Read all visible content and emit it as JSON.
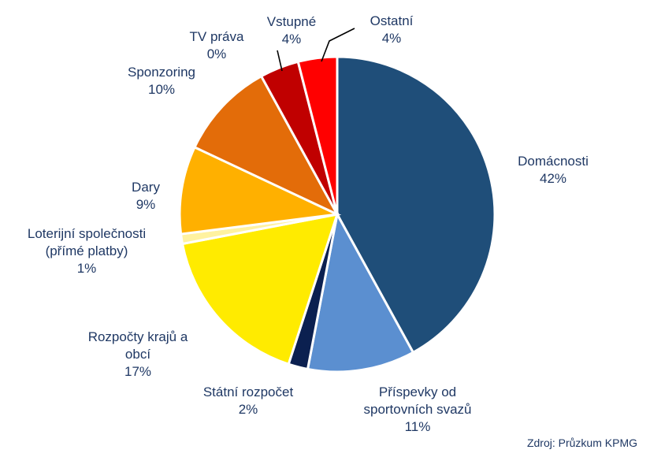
{
  "chart_data": {
    "type": "pie",
    "slices": [
      {
        "label": [
          "Domácnosti"
        ],
        "value_label": "42%",
        "value": 42,
        "color": "#1f4e79"
      },
      {
        "label": [
          "Příspevky od",
          "sportovních svazů"
        ],
        "value_label": "11%",
        "value": 11,
        "color": "#5b8fd0"
      },
      {
        "label": [
          "Státní rozpočet"
        ],
        "value_label": "2%",
        "value": 2,
        "color": "#0b2050"
      },
      {
        "label": [
          "Rozpočty krajů a",
          "obcí"
        ],
        "value_label": "17%",
        "value": 17,
        "color": "#ffeb00"
      },
      {
        "label": [
          "Loterijní společnosti",
          "(přímé platby)"
        ],
        "value_label": "1%",
        "value": 1,
        "color": "#fff2a0"
      },
      {
        "label": [
          "Dary"
        ],
        "value_label": "9%",
        "value": 9,
        "color": "#ffb000"
      },
      {
        "label": [
          "Sponzoring"
        ],
        "value_label": "10%",
        "value": 10,
        "color": "#e36c09"
      },
      {
        "label": [
          "TV práva"
        ],
        "value_label": "0%",
        "value": 0,
        "color": "#c00000"
      },
      {
        "label": [
          "Vstupné"
        ],
        "value_label": "4%",
        "value": 4,
        "color": "#c00000"
      },
      {
        "label": [
          "Ostatní"
        ],
        "value_label": "4%",
        "value": 4,
        "color": "#ff0000"
      }
    ]
  },
  "source_text": "Zdroj: Průzkum KPMG"
}
